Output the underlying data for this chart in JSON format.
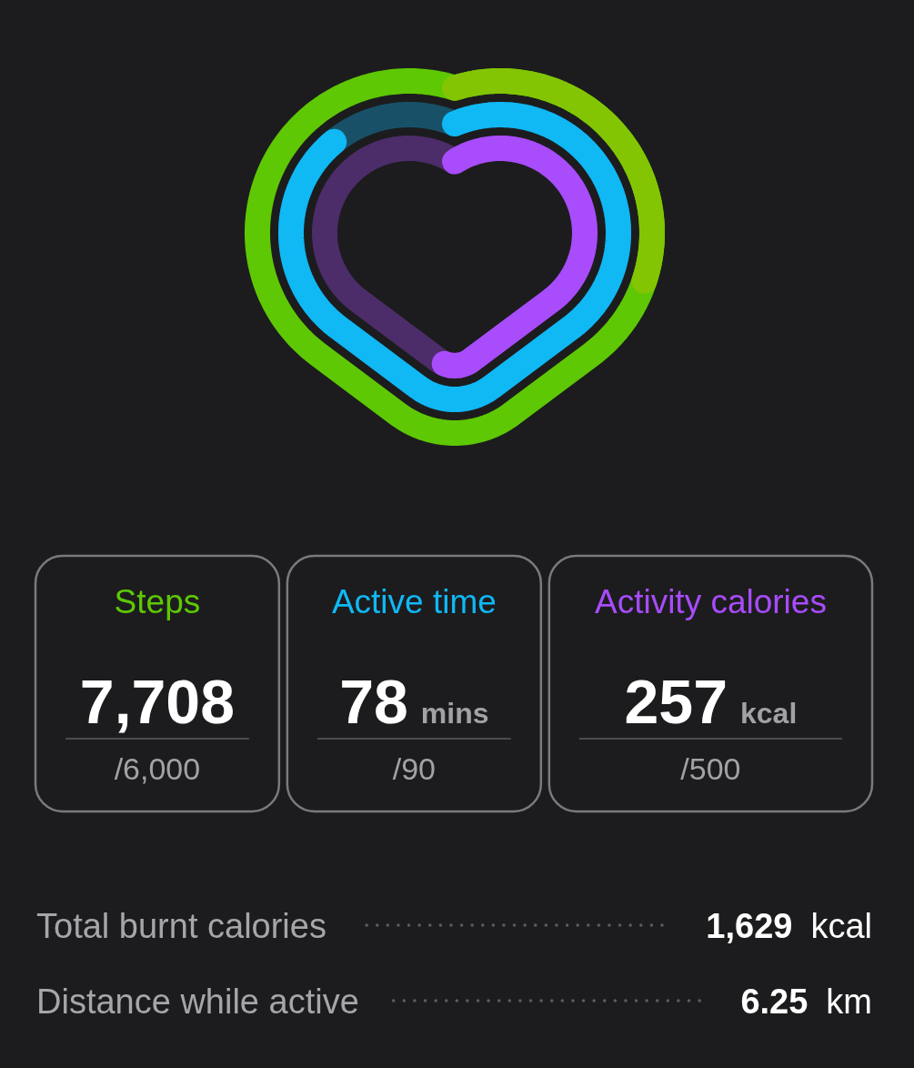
{
  "chart_data": {
    "type": "other",
    "categories": [
      "Steps",
      "Active time",
      "Activity calories"
    ],
    "colors": [
      "#5ec804",
      "#10b8f4",
      "#a84cfc"
    ],
    "series": [
      {
        "values": [
          7708,
          78,
          257
        ],
        "value_labels": [
          "7,708",
          "78",
          "257"
        ]
      },
      {
        "values": [
          6000,
          90,
          500
        ],
        "value_labels": [
          "/6,000",
          "/90",
          "/500"
        ]
      }
    ],
    "annotations": [
      {
        "text": "mins",
        "x": "Active time"
      },
      {
        "text": "kcal",
        "x": "Activity calories"
      },
      "Total burnt calories",
      "1,629",
      "kcal",
      "Distance while active",
      "6.25",
      "km"
    ]
  }
}
